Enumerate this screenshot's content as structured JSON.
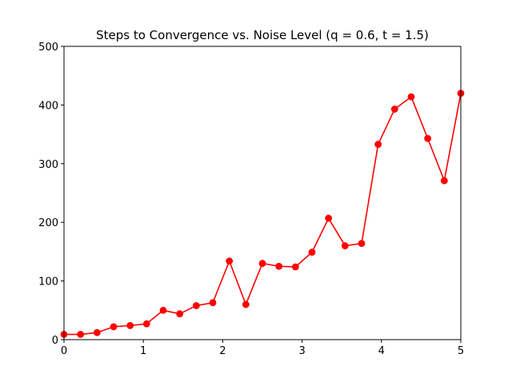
{
  "chart_data": {
    "type": "line",
    "title": "Steps to Convergence vs. Noise Level (q = 0.6, t = 1.5)",
    "xlabel": "",
    "ylabel": "",
    "xlim": [
      0,
      5
    ],
    "ylim": [
      0,
      500
    ],
    "x_ticks": [
      0,
      1,
      2,
      3,
      4,
      5
    ],
    "y_ticks": [
      0,
      100,
      200,
      300,
      400,
      500
    ],
    "grid": false,
    "legend": "none",
    "series": [
      {
        "color": "#ff0000",
        "marker": "circle",
        "x": [
          0,
          0.2083,
          0.4167,
          0.625,
          0.8333,
          1.0417,
          1.25,
          1.4583,
          1.6667,
          1.875,
          2.0833,
          2.2917,
          2.5,
          2.7083,
          2.9167,
          3.125,
          3.3333,
          3.5417,
          3.75,
          3.9583,
          4.1667,
          4.375,
          4.5833,
          4.7917,
          5
        ],
        "y": [
          9,
          9,
          12,
          22,
          24,
          27,
          50,
          44,
          58,
          63,
          134,
          60,
          130,
          125,
          124,
          149,
          207,
          160,
          164,
          333,
          393,
          414,
          343,
          271,
          420
        ]
      }
    ]
  }
}
